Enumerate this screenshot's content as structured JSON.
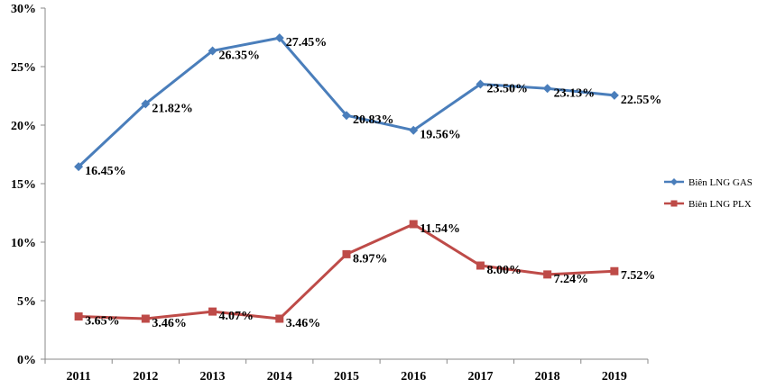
{
  "chart_data": {
    "type": "line",
    "title": "",
    "xlabel": "",
    "ylabel": "",
    "categories": [
      "2011",
      "2012",
      "2013",
      "2014",
      "2015",
      "2016",
      "2017",
      "2018",
      "2019"
    ],
    "ylim": [
      0,
      30
    ],
    "yticks": [
      "0%",
      "5%",
      "10%",
      "15%",
      "20%",
      "25%",
      "30%"
    ],
    "grid": false,
    "legend_position": "right",
    "series": [
      {
        "name": "Biên LNG GAS",
        "color": "#4a7ebb",
        "marker": "diamond",
        "values": [
          16.45,
          21.82,
          26.35,
          27.45,
          20.83,
          19.56,
          23.5,
          23.13,
          22.55
        ],
        "labels": [
          "16.45%",
          "21.82%",
          "26.35%",
          "27.45%",
          "20.83%",
          "19.56%",
          "23.50%",
          "23.13%",
          "22.55%"
        ]
      },
      {
        "name": "Biên LNG PLX",
        "color": "#be4b48",
        "marker": "square",
        "values": [
          3.65,
          3.46,
          4.07,
          3.46,
          8.97,
          11.54,
          8.0,
          7.24,
          7.52
        ],
        "labels": [
          "3.65%",
          "3.46%",
          "4.07%",
          "3.46%",
          "8.97%",
          "11.54%",
          "8.00%",
          "7.24%",
          "7.52%"
        ]
      }
    ]
  }
}
